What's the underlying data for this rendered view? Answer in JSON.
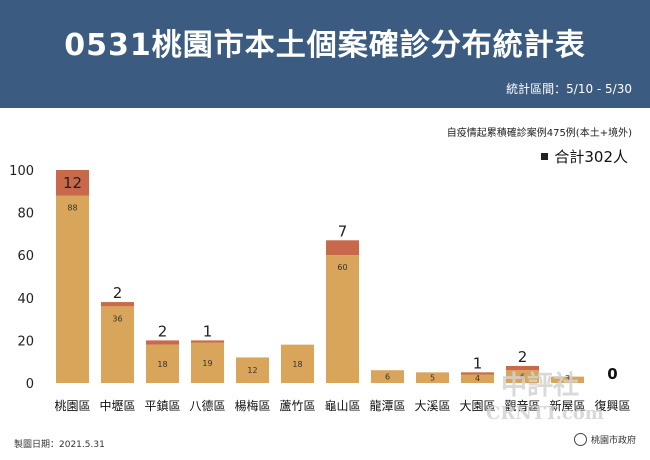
{
  "header": {
    "title": "0531桃園市本土個案確診分布統計表",
    "subtitle": "統計區間：5/10 - 5/30"
  },
  "note": "自疫情起累積確診案例475例(本土+境外)",
  "total_label": "合計302人",
  "footer": {
    "date": "製圖日期：2021.5.31",
    "agency": "桃園市政府"
  },
  "watermark": {
    "line1": "中評社",
    "line2": "CRNTT.com"
  },
  "colors": {
    "base": "#d9a55a",
    "new": "#c7694a",
    "header": "#3b5b80"
  },
  "chart_data": {
    "type": "bar",
    "stacked": true,
    "categories": [
      "桃園區",
      "中壢區",
      "平鎮區",
      "八德區",
      "楊梅區",
      "蘆竹區",
      "龜山區",
      "龍潭區",
      "大溪區",
      "大園區",
      "觀音區",
      "新屋區",
      "復興區"
    ],
    "series": [
      {
        "values": [
          88,
          36,
          18,
          19,
          12,
          18,
          60,
          6,
          5,
          4,
          6,
          3,
          0
        ]
      },
      {
        "values": [
          12,
          2,
          2,
          1,
          0,
          0,
          7,
          0,
          0,
          1,
          2,
          0,
          0
        ]
      }
    ],
    "top_labels": [
      "12",
      "2",
      "2",
      "1",
      "",
      "",
      "7",
      "",
      "",
      "1",
      "2",
      "",
      "0"
    ],
    "ylim": [
      0,
      100
    ],
    "yticks": [
      0,
      20,
      40,
      60,
      80,
      100
    ],
    "xlabel": "",
    "ylabel": "",
    "grid": false
  }
}
